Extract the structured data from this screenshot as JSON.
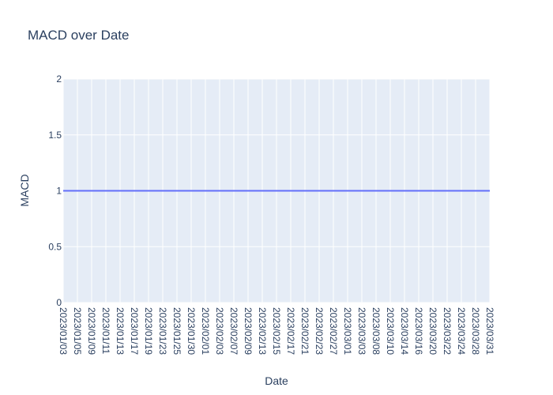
{
  "chart_data": {
    "type": "line",
    "title": "MACD over Date",
    "xlabel": "Date",
    "ylabel": "MACD",
    "ylim": [
      0,
      2
    ],
    "yticks": [
      "0",
      "0.5",
      "1",
      "1.5",
      "2"
    ],
    "grid": true,
    "legend": "none",
    "colors": {
      "plot_bg": "#e5ecf6",
      "grid": "#ffffff",
      "line": "#636efa",
      "text": "#2a3f5f"
    },
    "categories": [
      "2023/01/03",
      "2023/01/05",
      "2023/01/09",
      "2023/01/11",
      "2023/01/13",
      "2023/01/17",
      "2023/01/19",
      "2023/01/23",
      "2023/01/25",
      "2023/01/30",
      "2023/02/01",
      "2023/02/03",
      "2023/02/07",
      "2023/02/09",
      "2023/02/13",
      "2023/02/15",
      "2023/02/17",
      "2023/02/21",
      "2023/02/23",
      "2023/02/27",
      "2023/03/01",
      "2023/03/03",
      "2023/03/08",
      "2023/03/10",
      "2023/03/14",
      "2023/03/16",
      "2023/03/20",
      "2023/03/22",
      "2023/03/24",
      "2023/03/28",
      "2023/03/31"
    ],
    "series": [
      {
        "values": [
          1,
          1,
          1,
          1,
          1,
          1,
          1,
          1,
          1,
          1,
          1,
          1,
          1,
          1,
          1,
          1,
          1,
          1,
          1,
          1,
          1,
          1,
          1,
          1,
          1,
          1,
          1,
          1,
          1,
          1,
          1
        ]
      }
    ]
  }
}
